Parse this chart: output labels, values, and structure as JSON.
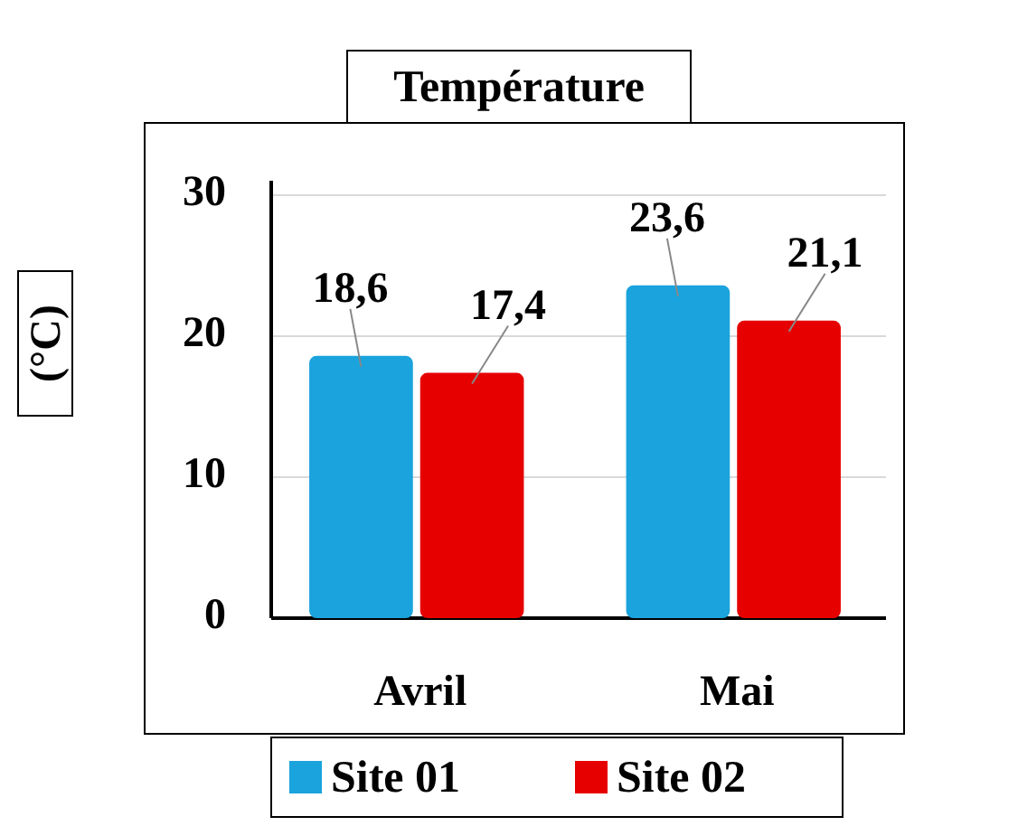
{
  "chart_data": {
    "type": "bar",
    "title": "Température",
    "ylabel": "(°C)",
    "categories": [
      "Avril",
      "Mai"
    ],
    "series": [
      {
        "name": "Site 01",
        "color": "#1aa3dc",
        "values": [
          18.6,
          23.6
        ],
        "value_labels": [
          "18,6",
          "23,6"
        ]
      },
      {
        "name": "Site 02",
        "color": "#e60000",
        "values": [
          17.4,
          21.1
        ],
        "value_labels": [
          "17,4",
          "21,1"
        ]
      }
    ],
    "ylim": [
      0,
      30
    ],
    "yticks": [
      0,
      10,
      20,
      30
    ],
    "grid": "y",
    "legend": "bottom"
  }
}
